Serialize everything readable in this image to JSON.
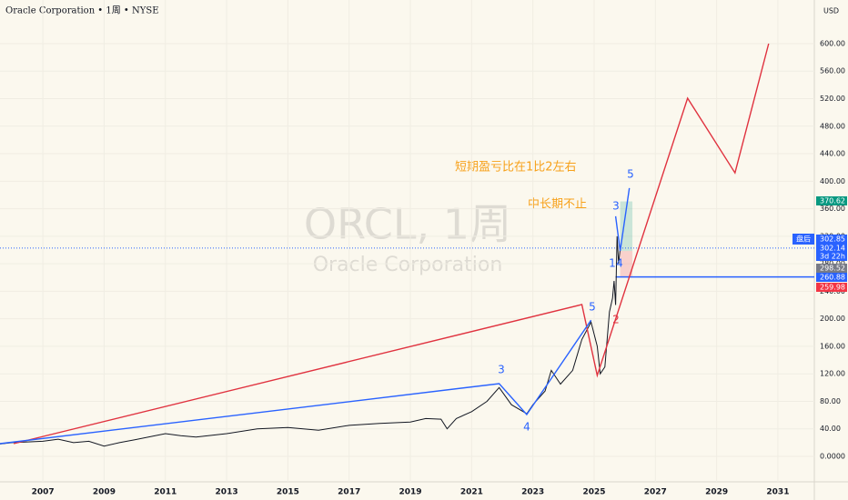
{
  "chart_data": {
    "type": "line",
    "header": "Oracle Corporation • 1周 • NYSE",
    "currency": "USD",
    "watermark_symbol": "ORCL, 1周",
    "watermark_name": "Oracle Corporation",
    "annotations": [
      "短期盈亏比在1比2左右",
      "中长期不止"
    ],
    "wave_labels": [
      "3",
      "4",
      "5",
      "1",
      "4",
      "2",
      "3",
      "5"
    ],
    "xlim": [
      2005.6,
      2032.19
    ],
    "ylim": [
      -37,
      663.4
    ],
    "xticks": [
      2007,
      2009,
      2011,
      2013,
      2015,
      2017,
      2019,
      2021,
      2023,
      2025,
      2027,
      2029,
      2031
    ],
    "yticks": [
      {
        "value": 0,
        "label": "0.0000"
      },
      {
        "value": 40,
        "label": "40.00"
      },
      {
        "value": 80,
        "label": "80.00"
      },
      {
        "value": 120,
        "label": "120.00"
      },
      {
        "value": 160,
        "label": "160.00"
      },
      {
        "value": 200,
        "label": "200.00"
      },
      {
        "value": 240,
        "label": "240.00"
      },
      {
        "value": 280,
        "label": "280.00"
      },
      {
        "value": 320,
        "label": "320.00"
      },
      {
        "value": 360,
        "label": "360.00"
      },
      {
        "value": 400,
        "label": "400.00"
      },
      {
        "value": 440,
        "label": "440.00"
      },
      {
        "value": 480,
        "label": "480.00"
      },
      {
        "value": 520,
        "label": "520.00"
      },
      {
        "value": 560,
        "label": "560.00"
      },
      {
        "value": 600,
        "label": "600.00"
      }
    ],
    "series": [
      {
        "color": "#131722",
        "x": [
          2005.6,
          2006,
          2007,
          2007.5,
          2008,
          2008.5,
          2009,
          2009.5,
          2010,
          2011,
          2011.5,
          2012,
          2013,
          2014,
          2015,
          2016,
          2017,
          2018,
          2019,
          2019.5,
          2020,
          2020.2,
          2020.5,
          2021,
          2021.5,
          2021.9,
          2022.3,
          2022.8,
          2023,
          2023.4,
          2023.6,
          2023.9,
          2024.3,
          2024.6,
          2024.9,
          2025.1,
          2025.2,
          2025.35,
          2025.5,
          2025.6,
          2025.65,
          2025.7,
          2025.75,
          2025.8,
          2025.85
        ],
        "values": [
          18,
          20,
          22,
          25,
          20,
          22,
          15,
          20,
          24,
          33,
          30,
          28,
          33,
          40,
          42,
          38,
          45,
          48,
          50,
          55,
          54,
          40,
          55,
          65,
          80,
          100,
          75,
          62,
          75,
          95,
          125,
          105,
          125,
          170,
          195,
          160,
          120,
          130,
          210,
          230,
          255,
          220,
          320,
          280,
          302
        ]
      },
      {
        "color": "#e0323f",
        "x": [
          2006.05,
          2024.6,
          2025.1,
          2028.05,
          2029.6,
          2030.7
        ],
        "values": [
          18.5,
          220.7,
          117.6,
          520.7,
          412,
          600
        ]
      },
      {
        "color": "#2962ff",
        "x": [
          2005.6,
          2021.9,
          2022.8,
          2024.9
        ],
        "values": [
          18.5,
          105.7,
          60.8,
          198
        ]
      },
      {
        "color": "#2962ff",
        "x": [
          2025.7,
          2025.85,
          2026.15
        ],
        "values": [
          349,
          298.7,
          390
        ]
      }
    ],
    "price_labels": [
      {
        "value": 370.62,
        "color": "#089981"
      },
      {
        "value": 302.85,
        "color": "#2962ff",
        "tag": "盘后"
      },
      {
        "value": 302.14,
        "color": "#2962ff",
        "sub": "3d 22h"
      },
      {
        "value": 298.52,
        "color": "#787b86"
      },
      {
        "value": 260.88,
        "color": "#2962ff"
      },
      {
        "value": 259.98,
        "color": "#f23645"
      }
    ]
  }
}
